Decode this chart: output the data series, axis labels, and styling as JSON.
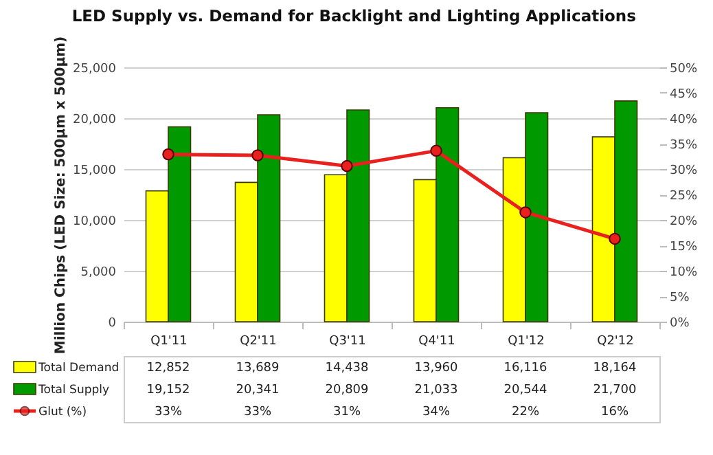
{
  "chart_data": {
    "type": "bar",
    "title": "LED Supply vs. Demand for Backlight and Lighting Applications",
    "ylabel": "Million Chips (LED Size: 500µm x 500µm)",
    "categories": [
      "Q1'11",
      "Q2'11",
      "Q3'11",
      "Q4'11",
      "Q1'12",
      "Q2'12"
    ],
    "series": [
      {
        "name": "Total Demand",
        "color": "#ffff00",
        "values": [
          12852,
          13689,
          14438,
          13960,
          16116,
          18164
        ],
        "value_labels": [
          "12,852",
          "13,689",
          "14,438",
          "13,960",
          "16,116",
          "18,164"
        ]
      },
      {
        "name": "Total Supply",
        "color": "#009900",
        "values": [
          19152,
          20341,
          20809,
          21033,
          20544,
          21700
        ],
        "value_labels": [
          "19,152",
          "20,341",
          "20,809",
          "21,033",
          "20,544",
          "21,700"
        ]
      },
      {
        "name": "Glut (%)",
        "type": "line",
        "axis": "y2",
        "color": "#e8211f",
        "values": [
          32.9,
          32.7,
          30.6,
          33.6,
          21.5,
          16.3
        ],
        "value_labels": [
          "33%",
          "33%",
          "31%",
          "34%",
          "22%",
          "16%"
        ]
      }
    ],
    "ylim": [
      0,
      25000
    ],
    "yticks": [
      {
        "value": 0,
        "label": "0"
      },
      {
        "value": 5000,
        "label": "5,000"
      },
      {
        "value": 10000,
        "label": "10,000"
      },
      {
        "value": 15000,
        "label": "15,000"
      },
      {
        "value": 20000,
        "label": "20,000"
      },
      {
        "value": 25000,
        "label": "25,000"
      }
    ],
    "y2lim": [
      0,
      50
    ],
    "y2ticks": [
      {
        "value": 0,
        "label": "0%"
      },
      {
        "value": 5,
        "label": "5%"
      },
      {
        "value": 10,
        "label": "10%"
      },
      {
        "value": 15,
        "label": "15%"
      },
      {
        "value": 20,
        "label": "20%"
      },
      {
        "value": 25,
        "label": "25%"
      },
      {
        "value": 30,
        "label": "30%"
      },
      {
        "value": 35,
        "label": "35%"
      },
      {
        "value": 40,
        "label": "40%"
      },
      {
        "value": 45,
        "label": "45%"
      },
      {
        "value": 50,
        "label": "50%"
      }
    ],
    "grid": "y",
    "legend": "bottom",
    "marker": "circle"
  }
}
